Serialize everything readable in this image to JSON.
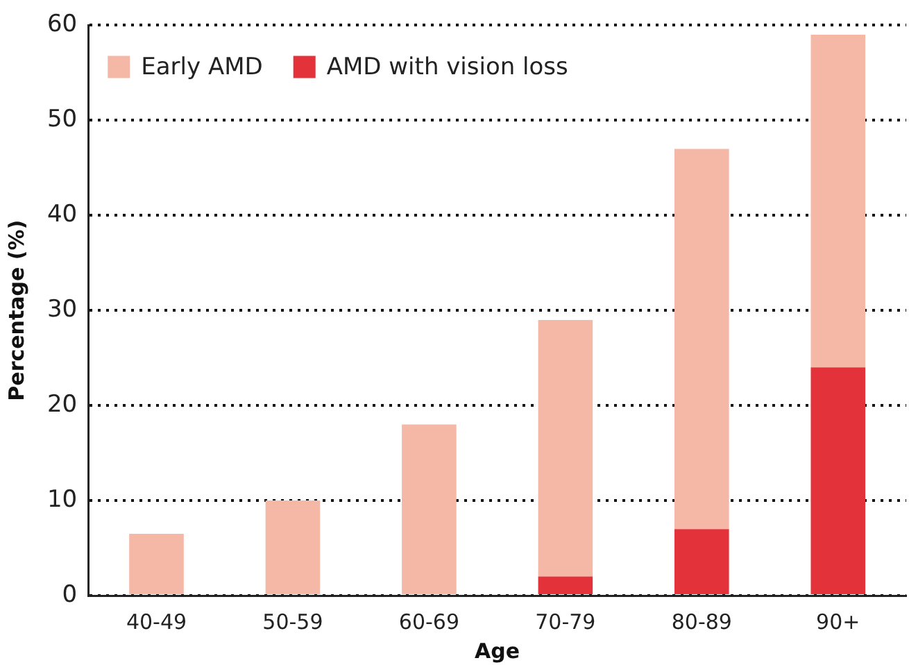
{
  "chart_data": {
    "type": "bar",
    "stacked": true,
    "xlabel": "Age",
    "ylabel": "Percentage (%)",
    "categories": [
      "40-49",
      "50-59",
      "60-69",
      "70-79",
      "80-89",
      "90+"
    ],
    "series": [
      {
        "name": "AMD with vision loss",
        "color": "#e3323a",
        "values": [
          0,
          0,
          0,
          2,
          7,
          24
        ]
      },
      {
        "name": "Early AMD",
        "color": "#f5b7a6",
        "values": [
          6.5,
          10,
          18,
          27,
          40,
          35
        ]
      }
    ],
    "ylim": [
      0,
      60
    ],
    "yticks": [
      0,
      10,
      20,
      30,
      40,
      50,
      60
    ],
    "grid": "y",
    "line_style": "dotted",
    "legend": "top left"
  }
}
